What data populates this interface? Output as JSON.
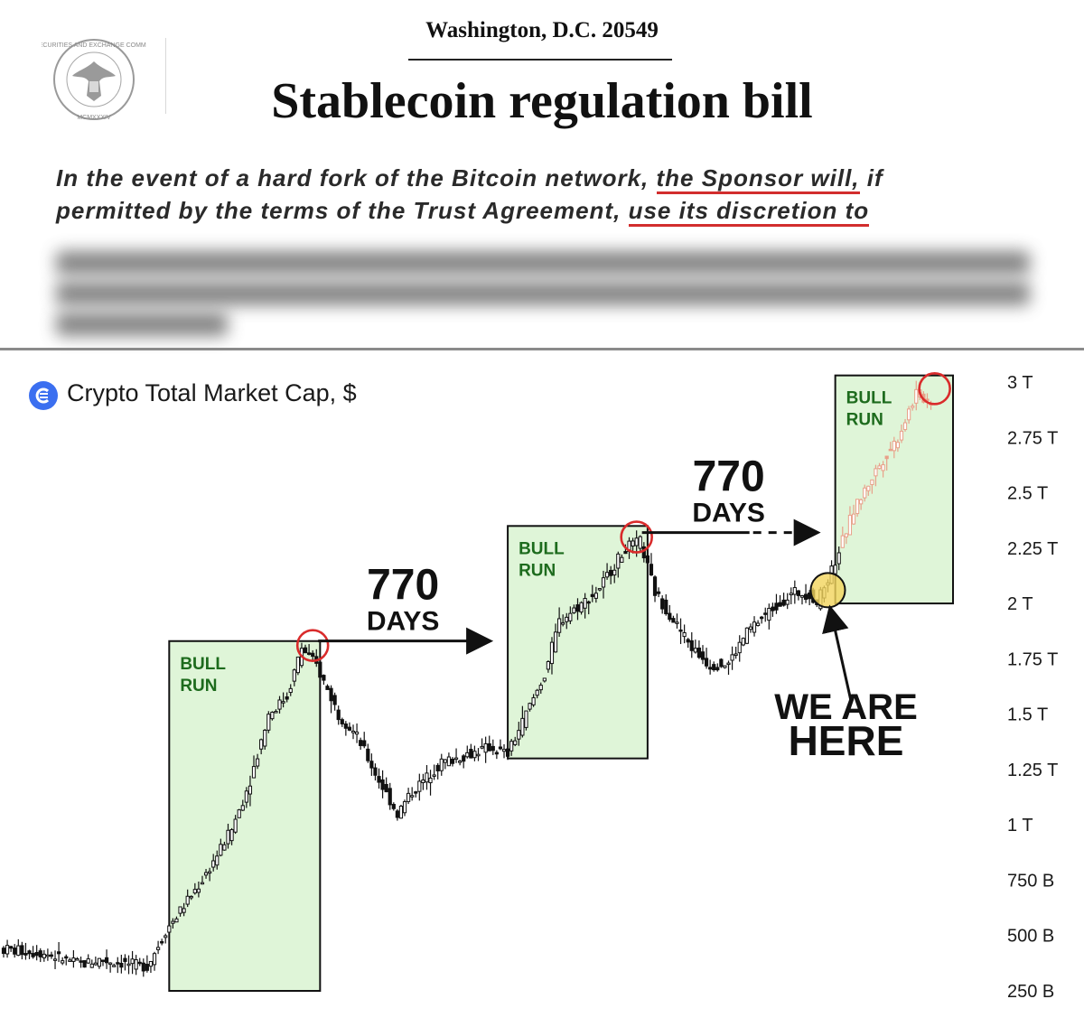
{
  "document": {
    "seal_text": [
      "U.S. SECURITIES AND EXCHANGE COMMISSION",
      "MCMXXXIV"
    ],
    "location": "Washington, D.C. 20549",
    "title": "Stablecoin regulation bill",
    "paragraph": {
      "line1_a": "In the event of a hard fork of the Bitcoin network,",
      "line1_b": "the Sponsor will,",
      "line1_c": "if",
      "line2_a": "permitted by the terms of the Trust Agreement,",
      "line2_b": "use its discretion to"
    }
  },
  "colors": {
    "underline": "#d22d2d",
    "box_fill": "#dff5d8",
    "box_label": "#1d6b1d",
    "circle": "#d92b2b",
    "highlight": "#f2d45c",
    "candle": "#111111",
    "recent_candle": "#e8a089",
    "logo": "#3b6ff0"
  },
  "chart_data": {
    "type": "candlestick",
    "title": "Crypto Total Market Cap, $",
    "y_unit": "$",
    "y_ticks": [
      "3 T",
      "2.75 T",
      "2.5 T",
      "2.25 T",
      "2 T",
      "1.75 T",
      "1.5 T",
      "1.25 T",
      "1 T",
      "750 B",
      "500 B",
      "250 B"
    ],
    "y_tick_values": [
      3.0,
      2.75,
      2.5,
      2.25,
      2.0,
      1.75,
      1.5,
      1.25,
      1.0,
      0.75,
      0.5,
      0.25
    ],
    "ylim": [
      0.25,
      3.0
    ],
    "grid": false,
    "price_path_trillions": [
      [
        0,
        0.44
      ],
      [
        12,
        0.42
      ],
      [
        22,
        0.37
      ],
      [
        27,
        0.39
      ],
      [
        40,
        0.36
      ],
      [
        45,
        0.52
      ],
      [
        55,
        0.75
      ],
      [
        63,
        0.98
      ],
      [
        68,
        1.2
      ],
      [
        73,
        1.5
      ],
      [
        78,
        1.58
      ],
      [
        82,
        1.8
      ],
      [
        86,
        1.72
      ],
      [
        92,
        1.5
      ],
      [
        97,
        1.4
      ],
      [
        103,
        1.2
      ],
      [
        108,
        1.05
      ],
      [
        112,
        1.15
      ],
      [
        120,
        1.28
      ],
      [
        133,
        1.35
      ],
      [
        138,
        1.32
      ],
      [
        143,
        1.5
      ],
      [
        148,
        1.68
      ],
      [
        152,
        1.92
      ],
      [
        162,
        2.05
      ],
      [
        170,
        2.25
      ],
      [
        174,
        2.28
      ],
      [
        178,
        2.05
      ],
      [
        188,
        1.8
      ],
      [
        193,
        1.72
      ],
      [
        198,
        1.73
      ],
      [
        203,
        1.87
      ],
      [
        210,
        1.98
      ],
      [
        216,
        2.05
      ],
      [
        220,
        2.04
      ],
      [
        222,
        2.0
      ],
      [
        226,
        2.15
      ],
      [
        232,
        2.42
      ],
      [
        238,
        2.6
      ],
      [
        244,
        2.75
      ],
      [
        249,
        2.95
      ],
      [
        252,
        2.92
      ]
    ],
    "annotations": [
      {
        "text": "BULL RUN",
        "type": "region",
        "x_range": [
          45,
          86
        ],
        "y_range": [
          0.25,
          1.83
        ]
      },
      {
        "text": "BULL RUN",
        "type": "region",
        "x_range": [
          137,
          175
        ],
        "y_range": [
          1.3,
          2.35
        ]
      },
      {
        "text": "BULL RUN",
        "type": "region",
        "x_range": [
          226,
          258
        ],
        "y_range": [
          2.0,
          3.03
        ]
      },
      {
        "number": "770",
        "word": "DAYS",
        "type": "interval"
      },
      {
        "number": "770",
        "word": "DAYS",
        "type": "interval",
        "dashed_projection": true
      },
      {
        "text_line1": "WE ARE",
        "text_line2": "HERE",
        "type": "pointer"
      }
    ],
    "markers": [
      {
        "type": "peak-circle",
        "x": 84,
        "y": 1.81
      },
      {
        "type": "peak-circle",
        "x": 172,
        "y": 2.3
      },
      {
        "type": "peak-circle",
        "x": 253,
        "y": 2.97
      },
      {
        "type": "current-position-circle",
        "x": 224,
        "y": 2.06
      }
    ]
  }
}
